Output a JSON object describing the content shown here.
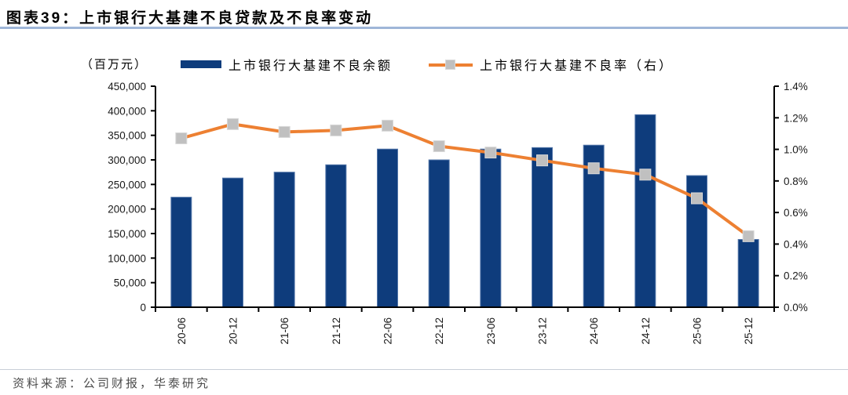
{
  "header": {
    "label": "图表39：",
    "title": "上市银行大基建不良贷款及不良率变动"
  },
  "unit_label": "（百万元）",
  "legend": {
    "balance_label": "上市银行大基建不良余额",
    "ratio_label": "上市银行大基建不良率（右）"
  },
  "footer": {
    "source": "资料来源：公司财报，华泰研究"
  },
  "colors": {
    "bar_fill": "#0e3c7c",
    "bar_edge": "#5578ab",
    "line": "#ed8032",
    "marker_fill": "#c0c0c0",
    "marker_edge": "#d8d8d8",
    "axis": "#000000",
    "tick_text": "#1a1a1a",
    "header_rule": "#9fb6d8"
  },
  "chart_data": {
    "type": "bar+line",
    "title": "上市银行大基建不良贷款及不良率变动",
    "categories": [
      "20-06",
      "20-12",
      "21-06",
      "21-12",
      "22-06",
      "22-12",
      "23-06",
      "23-12",
      "24-06",
      "24-12",
      "25-06",
      "25-12"
    ],
    "series": [
      {
        "name": "上市银行大基建不良余额",
        "type": "bar",
        "axis": "left",
        "unit": "百万元",
        "values": [
          224000,
          263000,
          275000,
          290000,
          322000,
          300000,
          322000,
          325000,
          330000,
          392000,
          268000,
          138000
        ]
      },
      {
        "name": "上市银行大基建不良率（右）",
        "type": "line",
        "axis": "right",
        "unit": "%",
        "marker": "square",
        "values": [
          1.07,
          1.16,
          1.11,
          1.12,
          1.15,
          1.02,
          0.98,
          0.93,
          0.88,
          0.84,
          0.69,
          0.45
        ]
      }
    ],
    "left_axis": {
      "min": 0,
      "max": 450000,
      "step": 50000,
      "tick_labels": [
        "450,000",
        "400,000",
        "350,000",
        "300,000",
        "250,000",
        "200,000",
        "150,000",
        "100,000",
        "50,000",
        "0"
      ]
    },
    "right_axis": {
      "min": 0,
      "max": 1.4,
      "step": 0.2,
      "tick_labels": [
        "1.4%",
        "1.2%",
        "1.0%",
        "0.8%",
        "0.6%",
        "0.4%",
        "0.2%",
        "0.0%"
      ]
    },
    "grid": false,
    "legend_position": "top"
  }
}
